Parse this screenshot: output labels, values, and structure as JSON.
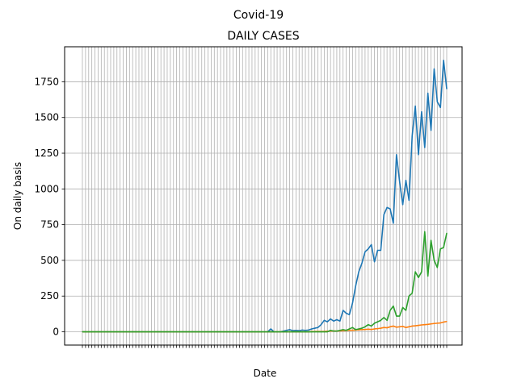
{
  "figure": {
    "suptitle": "Covid-19"
  },
  "chart_data": {
    "type": "line",
    "title": "DAILY CASES",
    "xlabel": "Date",
    "ylabel": "On daily basis",
    "grid": true,
    "ylim": [
      -93,
      1995
    ],
    "yticks": [
      0,
      250,
      500,
      750,
      1000,
      1250,
      1500,
      1750
    ],
    "ytick_labels": [
      "0",
      "250",
      "500",
      "750",
      "1000",
      "1250",
      "1500",
      "1750"
    ],
    "series": [
      {
        "color": "#1f77b4",
        "values": [
          0,
          0,
          0,
          0,
          0,
          0,
          0,
          0,
          0,
          0,
          0,
          0,
          0,
          0,
          0,
          0,
          0,
          0,
          0,
          0,
          0,
          0,
          0,
          0,
          0,
          0,
          0,
          0,
          0,
          0,
          0,
          0,
          0,
          0,
          0,
          0,
          0,
          0,
          0,
          0,
          0,
          0,
          0,
          0,
          0,
          0,
          0,
          0,
          0,
          0,
          0,
          0,
          0,
          0,
          0,
          0,
          0,
          0,
          0,
          0,
          20,
          0,
          0,
          0,
          5,
          10,
          15,
          8,
          10,
          8,
          12,
          10,
          12,
          20,
          25,
          30,
          50,
          80,
          70,
          90,
          75,
          85,
          75,
          150,
          130,
          120,
          200,
          320,
          420,
          480,
          560,
          580,
          610,
          490,
          570,
          570,
          820,
          870,
          860,
          760,
          1240,
          1050,
          890,
          1060,
          920,
          1370,
          1580,
          1240,
          1540,
          1290,
          1670,
          1410,
          1840,
          1610,
          1570,
          1900,
          1700
        ]
      },
      {
        "color": "#ff7f0e",
        "values": [
          0,
          0,
          0,
          0,
          0,
          0,
          0,
          0,
          0,
          0,
          0,
          0,
          0,
          0,
          0,
          0,
          0,
          0,
          0,
          0,
          0,
          0,
          0,
          0,
          0,
          0,
          0,
          0,
          0,
          0,
          0,
          0,
          0,
          0,
          0,
          0,
          0,
          0,
          0,
          0,
          0,
          0,
          0,
          0,
          0,
          0,
          0,
          0,
          0,
          0,
          0,
          0,
          0,
          0,
          0,
          0,
          0,
          0,
          0,
          0,
          0,
          0,
          0,
          0,
          0,
          0,
          0,
          0,
          0,
          0,
          0,
          0,
          0,
          2,
          2,
          3,
          2,
          3,
          4,
          5,
          6,
          5,
          7,
          8,
          9,
          10,
          11,
          12,
          14,
          15,
          16,
          18,
          16,
          20,
          22,
          25,
          30,
          28,
          35,
          40,
          32,
          35,
          38,
          30,
          35,
          40,
          42,
          45,
          48,
          50,
          52,
          55,
          58,
          60,
          62,
          68,
          72
        ]
      },
      {
        "color": "#2ca02c",
        "values": [
          0,
          0,
          0,
          0,
          0,
          0,
          0,
          0,
          0,
          0,
          0,
          0,
          0,
          0,
          0,
          0,
          0,
          0,
          0,
          0,
          0,
          0,
          0,
          0,
          0,
          0,
          0,
          0,
          0,
          0,
          0,
          0,
          0,
          0,
          0,
          0,
          0,
          0,
          0,
          0,
          0,
          0,
          0,
          0,
          0,
          0,
          0,
          0,
          0,
          0,
          0,
          0,
          0,
          0,
          0,
          0,
          0,
          0,
          0,
          0,
          0,
          0,
          0,
          0,
          0,
          0,
          0,
          0,
          0,
          0,
          0,
          0,
          0,
          0,
          0,
          0,
          0,
          0,
          0,
          10,
          5,
          5,
          10,
          15,
          10,
          20,
          30,
          15,
          20,
          25,
          35,
          50,
          40,
          60,
          70,
          80,
          100,
          80,
          150,
          180,
          110,
          110,
          170,
          150,
          250,
          270,
          420,
          380,
          420,
          700,
          390,
          640,
          500,
          450,
          580,
          590,
          690
        ]
      }
    ]
  }
}
